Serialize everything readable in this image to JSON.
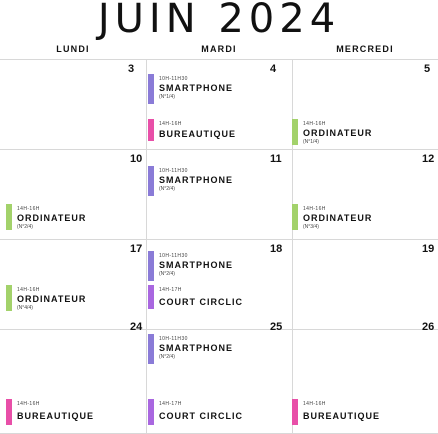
{
  "calendar": {
    "title": "JUIN   2024",
    "days": [
      "LUNDI",
      "MARDI",
      "MERCREDI"
    ]
  },
  "colors": {
    "smartphone": "#8a7bd7",
    "bureautique": "#e84fa8",
    "ordinateur": "#a3d26b",
    "court": "#a967e0",
    "grid": "#d8d8d8"
  },
  "weeks": [
    {
      "numbers": {
        "lundi": "3",
        "mardi": "4",
        "mercredi": "5"
      },
      "events": {
        "e1": {
          "time": "10H-11H30",
          "name": "SMARTPHONE",
          "num": "(N°1/4)"
        },
        "e2": {
          "time": "14H-16H",
          "name": "BUREAUTIQUE",
          "num": ""
        },
        "e3": {
          "time": "14H-16H",
          "name": "ORDINATEUR",
          "num": "(N°1/4)"
        }
      }
    },
    {
      "numbers": {
        "lundi": "10",
        "mardi": "11",
        "mercredi": "12"
      },
      "events": {
        "e1": {
          "time": "10H-11H30",
          "name": "SMARTPHONE",
          "num": "(N°2/4)"
        },
        "e2": {
          "time": "14H-16H",
          "name": "ORDINATEUR",
          "num": "(N°2/4)"
        },
        "e3": {
          "time": "14H-16H",
          "name": "ORDINATEUR",
          "num": "(N°3/4)"
        }
      }
    },
    {
      "numbers": {
        "lundi": "17",
        "mardi": "18",
        "mercredi": "19"
      },
      "events": {
        "e1": {
          "time": "10H-11H30",
          "name": "SMARTPHONE",
          "num": "(N°2/4)"
        },
        "e2": {
          "time": "14H-16H",
          "name": "ORDINATEUR",
          "num": "(N°4/4)"
        },
        "e3": {
          "time": "14H-17H",
          "name": "COURT CIRCLIC",
          "num": ""
        }
      }
    },
    {
      "numbers": {
        "lundi": "24",
        "mardi": "25",
        "mercredi": "26"
      },
      "events": {
        "e1": {
          "time": "10H-11H30",
          "name": "SMARTPHONE",
          "num": "(N°2/4)"
        },
        "e2": {
          "time": "14H-16H",
          "name": "BUREAUTIQUE",
          "num": ""
        },
        "e3": {
          "time": "14H-17H",
          "name": "COURT CIRCLIC",
          "num": ""
        },
        "e4": {
          "time": "14H-16H",
          "name": "BUREAUTIQUE",
          "num": ""
        }
      }
    }
  ]
}
